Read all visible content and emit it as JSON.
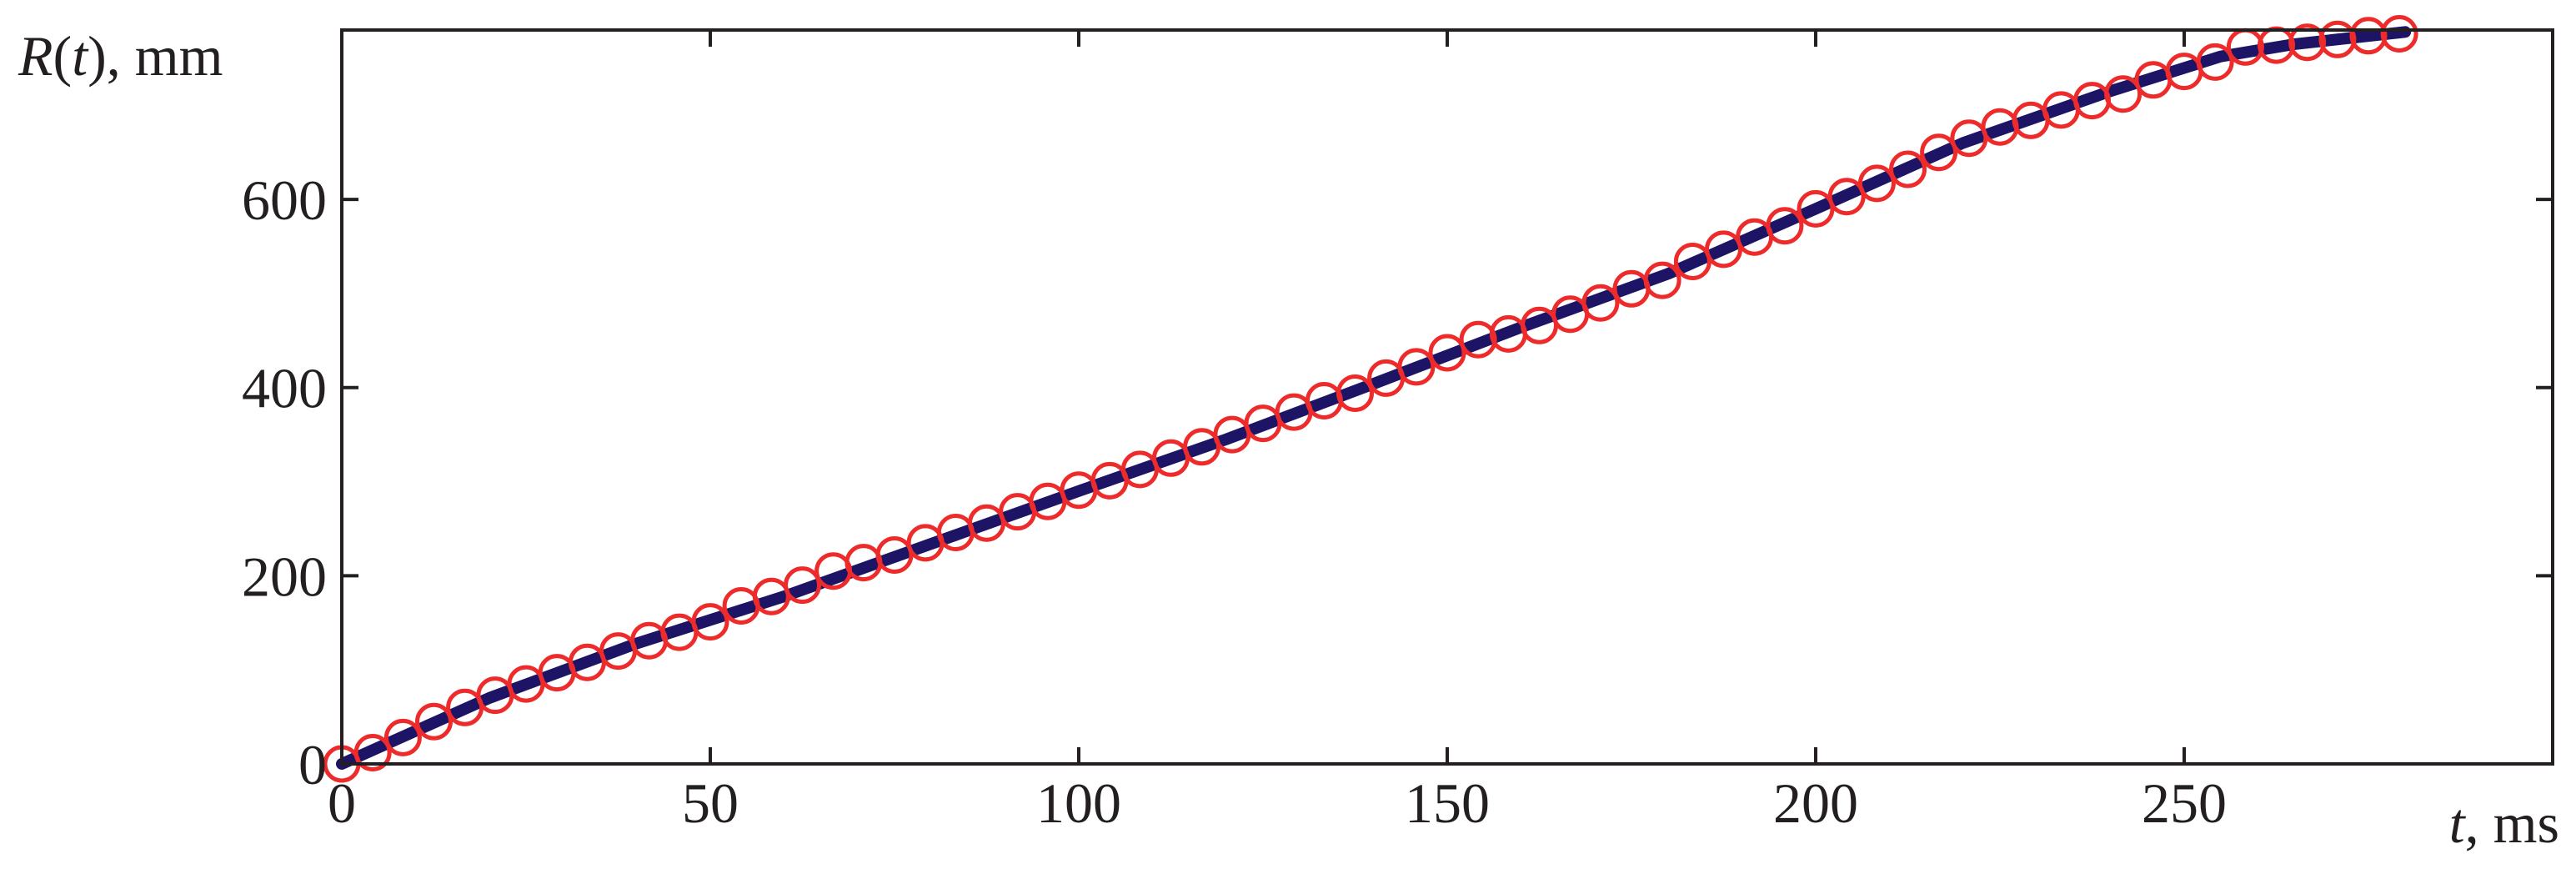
{
  "chart_data": {
    "type": "scatter",
    "ylabel_parts": {
      "var": "R",
      "open": "(",
      "arg": "t",
      "close": ")",
      "unit": ", mm"
    },
    "xlabel_parts": {
      "var": "t",
      "unit": ", ms"
    },
    "xlim": [
      0,
      300
    ],
    "ylim": [
      0,
      780
    ],
    "x_ticks": [
      0,
      50,
      100,
      150,
      200,
      250
    ],
    "y_ticks": [
      0,
      200,
      400,
      600
    ],
    "grid": false,
    "legend": "none",
    "colors": {
      "fit_line": "#1e1466",
      "markers": "#ee2b2b",
      "axes": "#231f20"
    },
    "series": [
      {
        "style": "circle-markers",
        "x": [
          0,
          4.2,
          8.3,
          12.5,
          16.7,
          20.8,
          25,
          29.2,
          33.3,
          37.5,
          41.7,
          45.8,
          50,
          54.2,
          58.3,
          62.5,
          66.7,
          70.8,
          75,
          79.2,
          83.3,
          87.5,
          91.7,
          95.8,
          100,
          104.2,
          108.3,
          112.5,
          116.7,
          120.8,
          125,
          129.2,
          133.3,
          137.5,
          141.7,
          145.8,
          150,
          154.2,
          158.3,
          162.5,
          166.7,
          170.8,
          175,
          179.2,
          183.3,
          187.5,
          191.7,
          195.8,
          200,
          204.2,
          208.3,
          212.5,
          216.7,
          220.8,
          225,
          229.2,
          233.3,
          237.5,
          241.7,
          245.8,
          250,
          254.2,
          258.3,
          262.5,
          266.7,
          270.8,
          275,
          279.2
        ],
        "y": [
          0,
          12,
          28,
          45,
          60,
          73,
          85,
          97,
          108,
          120,
          131,
          140,
          151,
          168,
          178,
          190,
          205,
          214,
          222,
          235,
          246,
          256,
          268,
          279,
          291,
          301,
          313,
          325,
          337,
          350,
          362,
          374,
          386,
          394,
          410,
          422,
          437,
          451,
          457,
          466,
          478,
          490,
          505,
          514,
          534,
          547,
          560,
          572,
          590,
          603,
          617,
          632,
          650,
          665,
          677,
          684,
          695,
          705,
          712,
          727,
          736,
          746,
          762,
          764,
          767,
          770,
          774,
          776
        ]
      },
      {
        "style": "line",
        "x": [
          0,
          20,
          40,
          60,
          80,
          100,
          120,
          140,
          160,
          180,
          200,
          220,
          240,
          255,
          265,
          280
        ],
        "y": [
          0,
          70,
          128,
          178,
          234,
          290,
          345,
          404,
          464,
          521,
          590,
          660,
          715,
          752,
          765,
          778
        ]
      }
    ]
  }
}
